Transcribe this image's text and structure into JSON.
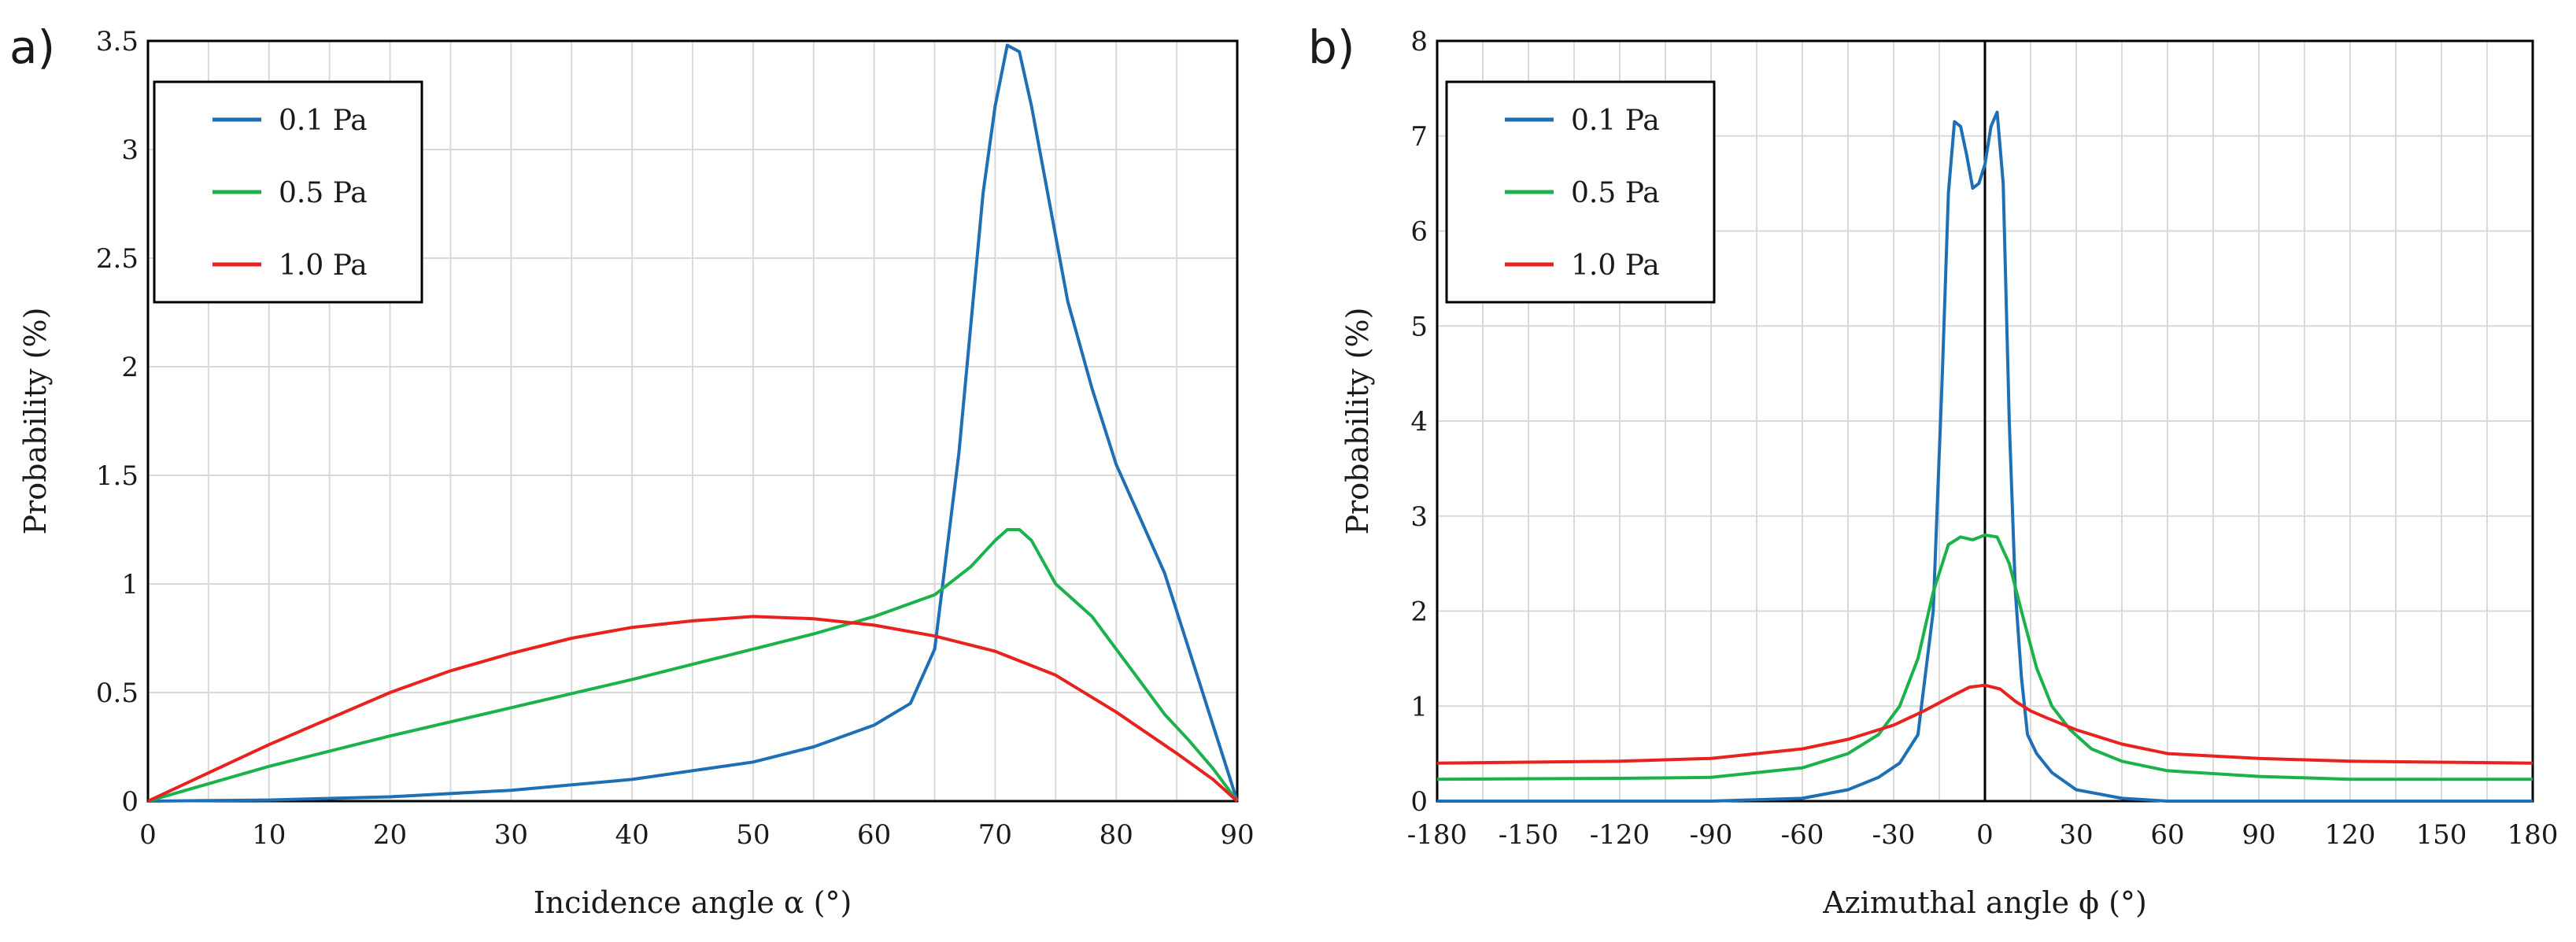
{
  "colors": {
    "p01": "#1f6fb5",
    "p05": "#1bb24b",
    "p10": "#e8221e",
    "grid": "#d9d9d9",
    "axis": "#000000"
  },
  "chart_data": [
    {
      "panel_label": "a)",
      "type": "line",
      "title": "",
      "xlabel": "Incidence angle α (°)",
      "ylabel": "Probability  (%)",
      "xlim": [
        0,
        90
      ],
      "ylim": [
        0,
        3.5
      ],
      "xticks": [
        0,
        10,
        20,
        30,
        40,
        50,
        60,
        70,
        80,
        90
      ],
      "xtick_labels": [
        "0",
        "10",
        "20",
        "30",
        "40",
        "50",
        "60",
        "70",
        "80",
        "90"
      ],
      "yticks": [
        0,
        0.5,
        1,
        1.5,
        2,
        2.5,
        3,
        3.5
      ],
      "ytick_labels": [
        "0",
        "0.5",
        "1",
        "1.5",
        "2",
        "2.5",
        "3",
        "3.5"
      ],
      "legend_position": "top-left",
      "vline": null,
      "series": [
        {
          "name": "0.1 Pa",
          "color": "#1f6fb5",
          "x": [
            0,
            10,
            20,
            30,
            40,
            50,
            55,
            60,
            63,
            65,
            67,
            69,
            70,
            71,
            72,
            73,
            74,
            76,
            78,
            80,
            82,
            84,
            86,
            88,
            90
          ],
          "y": [
            0,
            0.005,
            0.02,
            0.05,
            0.1,
            0.18,
            0.25,
            0.35,
            0.45,
            0.7,
            1.6,
            2.8,
            3.2,
            3.48,
            3.45,
            3.2,
            2.9,
            2.3,
            1.9,
            1.55,
            1.3,
            1.05,
            0.7,
            0.35,
            0
          ]
        },
        {
          "name": "0.5 Pa",
          "color": "#1bb24b",
          "x": [
            0,
            5,
            10,
            20,
            30,
            40,
            50,
            55,
            60,
            65,
            68,
            70,
            71,
            72,
            73,
            75,
            78,
            80,
            82,
            84,
            86,
            88,
            90
          ],
          "y": [
            0,
            0.08,
            0.16,
            0.3,
            0.43,
            0.56,
            0.7,
            0.77,
            0.85,
            0.95,
            1.08,
            1.2,
            1.25,
            1.25,
            1.2,
            1.0,
            0.85,
            0.7,
            0.55,
            0.4,
            0.28,
            0.15,
            0
          ]
        },
        {
          "name": "1.0 Pa",
          "color": "#e8221e",
          "x": [
            0,
            5,
            10,
            15,
            20,
            25,
            30,
            35,
            40,
            45,
            50,
            55,
            60,
            65,
            70,
            75,
            80,
            85,
            88,
            90
          ],
          "y": [
            0,
            0.13,
            0.26,
            0.38,
            0.5,
            0.6,
            0.68,
            0.75,
            0.8,
            0.83,
            0.85,
            0.84,
            0.81,
            0.76,
            0.69,
            0.58,
            0.41,
            0.22,
            0.1,
            0
          ]
        }
      ]
    },
    {
      "panel_label": "b)",
      "type": "line",
      "title": "",
      "xlabel": "Azimuthal angle ϕ (°)",
      "ylabel": "Probability  (%)",
      "xlim": [
        -180,
        180
      ],
      "ylim": [
        0,
        8
      ],
      "xticks": [
        -180,
        -150,
        -120,
        -90,
        -60,
        -30,
        0,
        30,
        60,
        90,
        120,
        150,
        180
      ],
      "xtick_labels": [
        "-180",
        "-150",
        "-120",
        "-90",
        "-60",
        "-30",
        "0",
        "30",
        "60",
        "90",
        "120",
        "150",
        "180"
      ],
      "yticks": [
        0,
        1,
        2,
        3,
        4,
        5,
        6,
        7,
        8
      ],
      "ytick_labels": [
        "0",
        "1",
        "2",
        "3",
        "4",
        "5",
        "6",
        "7",
        "8"
      ],
      "legend_position": "top-left",
      "vline": 0,
      "series": [
        {
          "name": "0.1 Pa",
          "color": "#1f6fb5",
          "x": [
            -180,
            -90,
            -60,
            -45,
            -35,
            -28,
            -22,
            -17,
            -14,
            -12,
            -10,
            -8,
            -6,
            -4,
            -2,
            0,
            2,
            4,
            6,
            8,
            10,
            12,
            14,
            17,
            22,
            30,
            45,
            60,
            90,
            180
          ],
          "y": [
            0,
            0,
            0.03,
            0.12,
            0.25,
            0.4,
            0.7,
            2.0,
            4.5,
            6.4,
            7.15,
            7.1,
            6.8,
            6.45,
            6.5,
            6.7,
            7.1,
            7.25,
            6.5,
            4.0,
            2.2,
            1.3,
            0.7,
            0.5,
            0.3,
            0.12,
            0.03,
            0,
            0,
            0
          ]
        },
        {
          "name": "0.5 Pa",
          "color": "#1bb24b",
          "x": [
            -180,
            -120,
            -90,
            -60,
            -45,
            -35,
            -28,
            -22,
            -17,
            -12,
            -8,
            -4,
            0,
            4,
            8,
            12,
            17,
            22,
            28,
            35,
            45,
            60,
            90,
            120,
            180
          ],
          "y": [
            0.23,
            0.24,
            0.25,
            0.35,
            0.5,
            0.7,
            1.0,
            1.5,
            2.2,
            2.7,
            2.78,
            2.75,
            2.8,
            2.78,
            2.5,
            2.0,
            1.4,
            1.0,
            0.75,
            0.55,
            0.42,
            0.32,
            0.26,
            0.23,
            0.23
          ]
        },
        {
          "name": "1.0 Pa",
          "color": "#e8221e",
          "x": [
            -180,
            -120,
            -90,
            -60,
            -45,
            -30,
            -20,
            -10,
            -5,
            0,
            5,
            10,
            15,
            20,
            30,
            45,
            60,
            90,
            120,
            180
          ],
          "y": [
            0.4,
            0.42,
            0.45,
            0.55,
            0.65,
            0.8,
            0.95,
            1.12,
            1.2,
            1.22,
            1.18,
            1.05,
            0.95,
            0.88,
            0.75,
            0.6,
            0.5,
            0.45,
            0.42,
            0.4
          ]
        }
      ]
    }
  ]
}
